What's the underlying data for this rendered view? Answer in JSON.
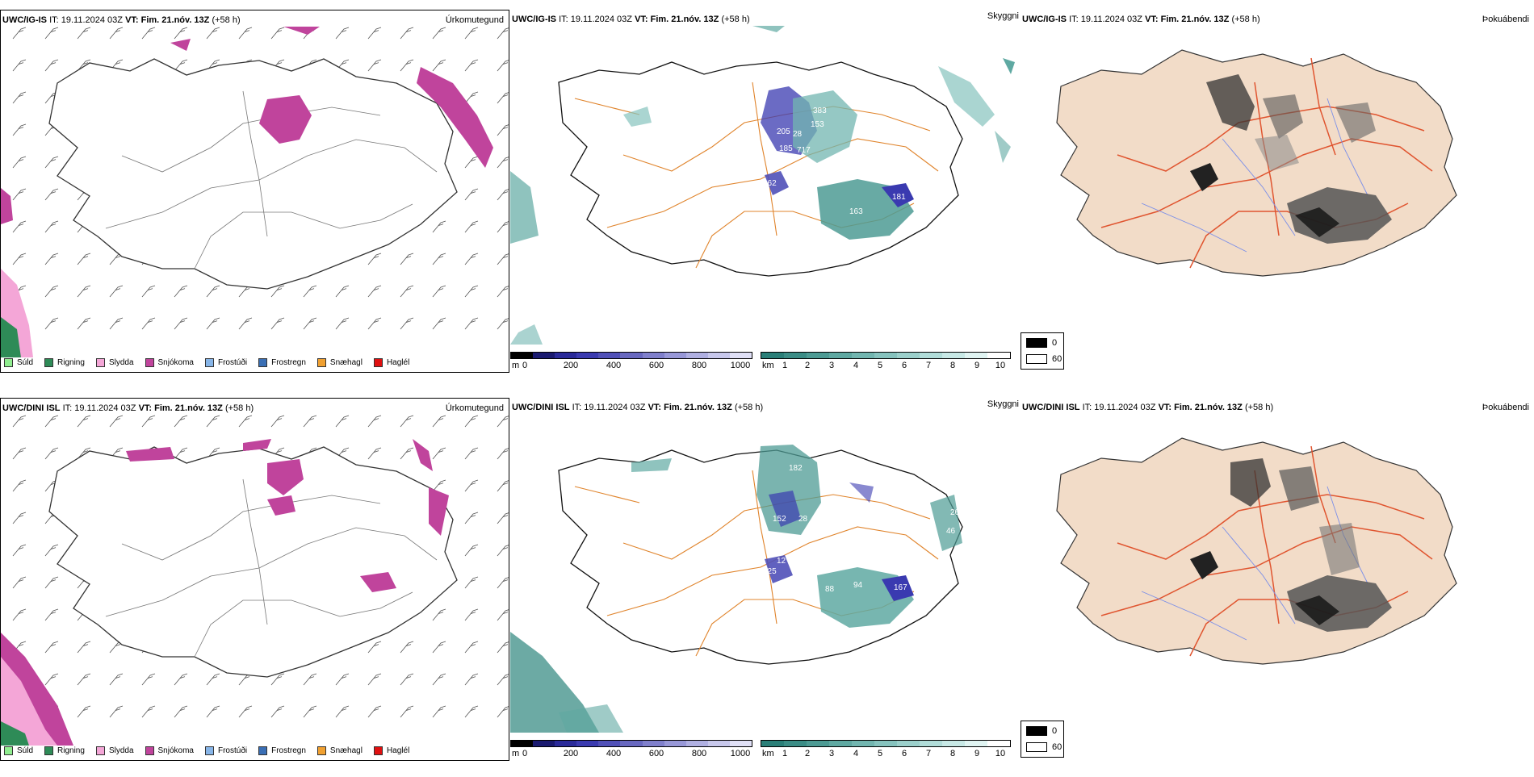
{
  "rows": [
    {
      "model": "UWC/IG-IS",
      "it_label": "IT:",
      "it_value": "19.11.2024 03Z",
      "vt_label": "VT:",
      "vt_value": "Fim. 21.nóv. 13Z",
      "lead": "(+58 h)",
      "cloud_labels": [
        "383",
        "153",
        "28",
        "205",
        "185",
        "717",
        "162",
        "163",
        "181"
      ]
    },
    {
      "model": "UWC/DINI ISL",
      "it_label": "IT:",
      "it_value": "19.11.2024 03Z",
      "vt_label": "VT:",
      "vt_value": "Fim. 21.nóv. 13Z",
      "lead": "(+58 h)",
      "cloud_labels": [
        "182",
        "152",
        "28",
        "125",
        "12",
        "50",
        "88",
        "94",
        "167",
        "26",
        "46"
      ]
    }
  ],
  "panel_titles": {
    "precip": "Úrkomutegund",
    "cloud": "Skyggni",
    "fog": "Þokuábendi"
  },
  "precip_legend": [
    {
      "label": "Súld",
      "color": "#90ee90"
    },
    {
      "label": "Rigning",
      "color": "#2e8b57"
    },
    {
      "label": "Slydda",
      "color": "#f4a6d7"
    },
    {
      "label": "Snjókoma",
      "color": "#c0449c"
    },
    {
      "label": "Frostúði",
      "color": "#87b5e8"
    },
    {
      "label": "Frostregn",
      "color": "#3a6fb5"
    },
    {
      "label": "Snæhagl",
      "color": "#f0a030"
    },
    {
      "label": "Haglél",
      "color": "#e01010"
    }
  ],
  "ceiling_bar": {
    "unit": "m",
    "ticks": [
      "0",
      "200",
      "400",
      "600",
      "800",
      "1000"
    ],
    "colors": [
      "#000000",
      "#1a1a70",
      "#2a2a9a",
      "#3a3ab0",
      "#5050b8",
      "#6868c0",
      "#8080cc",
      "#9898d8",
      "#b0b0e2",
      "#c8c8ec",
      "#e0e0f6"
    ]
  },
  "visibility_bar": {
    "unit": "km",
    "ticks": [
      "1",
      "2",
      "3",
      "4",
      "5",
      "6",
      "7",
      "8",
      "9",
      "10"
    ],
    "colors": [
      "#2a7f78",
      "#3b8d86",
      "#4d9b94",
      "#5fa9a2",
      "#72b6b0",
      "#86c3be",
      "#9bd0cb",
      "#b1ddd9",
      "#c8e9e6",
      "#e0f4f2",
      "#ffffff"
    ]
  },
  "fog_legend": [
    {
      "label": "0",
      "color": "#000000"
    },
    {
      "label": "60",
      "color": "#ffffff"
    }
  ]
}
